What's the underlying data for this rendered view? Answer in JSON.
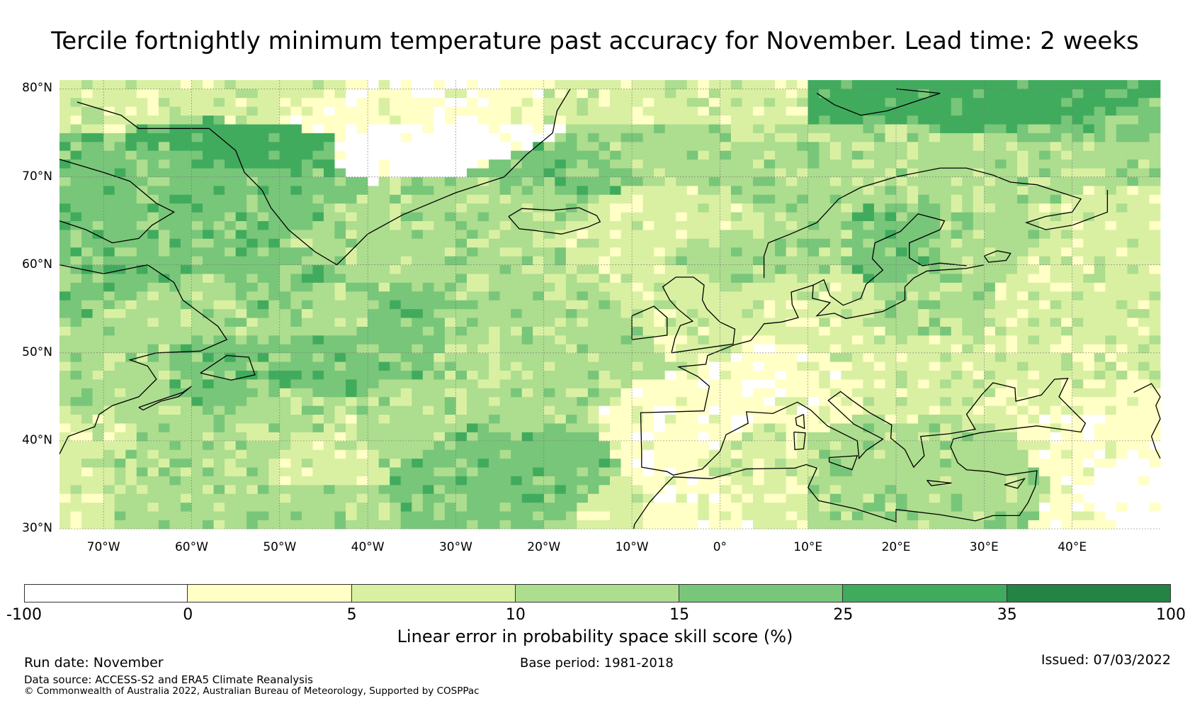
{
  "title": "Tercile fortnightly minimum temperature past accuracy for November. Lead time: 2 weeks",
  "map": {
    "region": "North Atlantic and Europe",
    "lon_range": [
      -75,
      50
    ],
    "lat_range": [
      30,
      81
    ],
    "lat_labels": [
      "80°N",
      "70°N",
      "60°N",
      "50°N",
      "40°N",
      "30°N"
    ],
    "lat_values": [
      80,
      70,
      60,
      50,
      40,
      30
    ],
    "lon_labels": [
      "70°W",
      "60°W",
      "50°W",
      "40°W",
      "30°W",
      "20°W",
      "10°W",
      "0°",
      "10°E",
      "20°E",
      "30°E",
      "40°E"
    ],
    "lon_values": [
      -70,
      -60,
      -50,
      -40,
      -30,
      -20,
      -10,
      0,
      10,
      20,
      30,
      40
    ]
  },
  "colorbar": {
    "title": "Linear error in probability space skill score (%)",
    "ticks": [
      "-100",
      "0",
      "5",
      "10",
      "15",
      "25",
      "35",
      "100"
    ],
    "colors": [
      "#ffffff",
      "#ffffc6",
      "#d9f0a3",
      "#addd8e",
      "#78c679",
      "#41ab5d",
      "#238443"
    ]
  },
  "footer": {
    "run_date": "Run date: November",
    "base_period": "Base period: 1981-2018",
    "issued": "Issued: 07/03/2022",
    "data_source": "Data source: ACCESS-S2 and ERA5 Climate Reanalysis",
    "copyright": "© Commonwealth of Australia 2022, Australian Bureau of Meteorology, Supported by COSPPac"
  }
}
